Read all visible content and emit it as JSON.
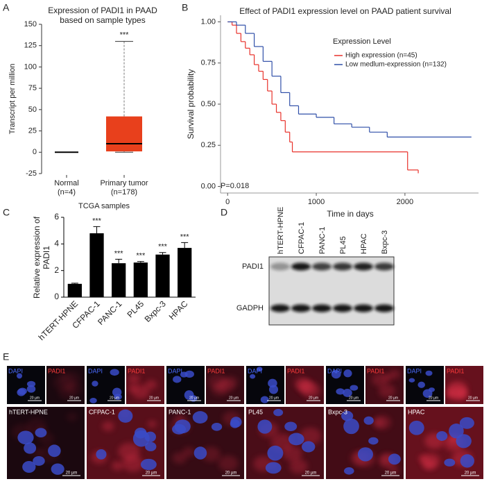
{
  "panel_labels": [
    "A",
    "B",
    "C",
    "D",
    "E"
  ],
  "chart_data": [
    {
      "type": "box",
      "title": "Expression of PADI1 in PAAD based on sample types",
      "xlabel": "TCGA samples",
      "ylabel": "Transcript per million",
      "categories": [
        "Normal (n=4)",
        "Primary tumor (n=178)"
      ],
      "boxes": [
        {
          "min": 0,
          "q1": 0,
          "median": 0,
          "q3": 0,
          "max": 0
        },
        {
          "min": 0,
          "q1": 1,
          "median": 10,
          "q3": 42,
          "max": 130
        }
      ],
      "colors": [
        "#000000",
        "#e8401c"
      ],
      "significance": [
        null,
        "***"
      ],
      "ylim": [
        -25,
        150
      ],
      "yticks": [
        -25,
        0,
        25,
        50,
        75,
        100,
        125,
        150
      ]
    },
    {
      "type": "step",
      "title": "Effect of PADI1 expression level on PAAD patient survival",
      "xlabel": "Time in days",
      "ylabel": "Survival probability",
      "legend_title": "Expression Level",
      "annotation": "P=0.018",
      "xlim": [
        -80,
        2830
      ],
      "ylim": [
        -0.04,
        1.04
      ],
      "xticks": [
        0,
        1000,
        2000
      ],
      "yticks": [
        {
          "value": 0,
          "label": "0.00"
        },
        0.25,
        {
          "value": 0.5,
          "label": "0.50"
        },
        0.75,
        {
          "value": 1,
          "label": "1.00"
        }
      ],
      "series": [
        {
          "name": "High expression (n=45)",
          "color": "#e8312a",
          "x": [
            0,
            50,
            100,
            150,
            200,
            250,
            300,
            350,
            400,
            450,
            500,
            550,
            600,
            650,
            700,
            730,
            2030,
            2150
          ],
          "values": [
            1.0,
            0.98,
            0.93,
            0.88,
            0.84,
            0.8,
            0.74,
            0.7,
            0.65,
            0.58,
            0.5,
            0.45,
            0.4,
            0.33,
            0.27,
            0.21,
            0.1,
            0.08
          ]
        },
        {
          "name": "Low medlum-expression (n=132)",
          "color": "#2f4fa8",
          "x": [
            0,
            100,
            200,
            300,
            400,
            500,
            600,
            700,
            800,
            1000,
            1200,
            1400,
            1600,
            1800,
            2750
          ],
          "values": [
            1.0,
            0.98,
            0.93,
            0.85,
            0.76,
            0.67,
            0.57,
            0.49,
            0.44,
            0.42,
            0.38,
            0.36,
            0.33,
            0.3,
            0.3
          ]
        }
      ]
    },
    {
      "type": "bar",
      "ylabel": "Relative expression of PADI1",
      "categories": [
        "hTERT-HPNE",
        "CFPAC-1",
        "PANC-1",
        "PL45",
        "Bxpc-3",
        "HPAC"
      ],
      "values": [
        1.0,
        4.8,
        2.55,
        2.6,
        3.2,
        3.7
      ],
      "errors": [
        0.05,
        0.5,
        0.3,
        0.08,
        0.15,
        0.4
      ],
      "significance": [
        null,
        "***",
        "***",
        "***",
        "***",
        "***"
      ],
      "color": "#000000",
      "ylim": [
        0,
        6
      ],
      "yticks": [
        0,
        2,
        4,
        6
      ]
    }
  ],
  "western_blot": {
    "columns": [
      "hTERT-HPNE",
      "CFPAC-1",
      "PANC-1",
      "PL45",
      "HPAC",
      "Bxpc-3"
    ],
    "rows": [
      "PADI1",
      "GADPH"
    ]
  },
  "immunofluorescence": {
    "cell_lines": [
      "hTERT-HPNE",
      "CFPAC-1",
      "PANC-1",
      "PL45",
      "Bxpc-3",
      "HPAC"
    ],
    "channels": [
      "DAPI",
      "PADI1"
    ],
    "scale_bar": "20 µm"
  }
}
